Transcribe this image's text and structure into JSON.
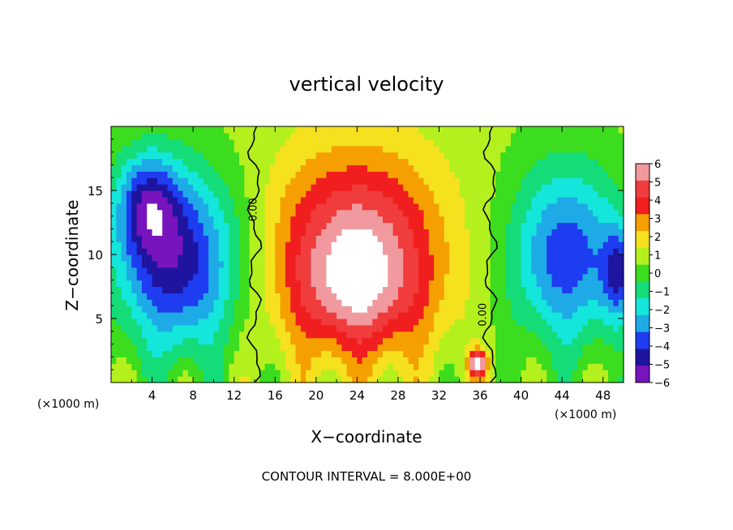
{
  "chart_data": {
    "type": "heatmap",
    "title": "vertical velocity",
    "xlabel": "X−coordinate",
    "ylabel": "Z−coordinate",
    "x_unit": "(×1000 m)",
    "x_unit_right": "(×1000 m)",
    "footer": "CONTOUR INTERVAL = 8.000E+00",
    "xlim": [
      0,
      50
    ],
    "ylim": [
      0,
      20
    ],
    "x_ticks": [
      4,
      8,
      12,
      16,
      20,
      24,
      28,
      32,
      36,
      40,
      44,
      48
    ],
    "x_tick_labels": [
      "4",
      "8",
      "12",
      "16",
      "20",
      "24",
      "28",
      "32",
      "36",
      "40",
      "44",
      "48"
    ],
    "y_ticks": [
      5,
      10,
      15
    ],
    "y_tick_labels": [
      "5",
      "10",
      "15"
    ],
    "colorbar": {
      "levels": [
        6,
        5,
        4,
        3,
        2,
        1,
        0,
        -1,
        -2,
        -3,
        -4,
        -5,
        -6
      ],
      "labels": [
        "6",
        "5",
        "4",
        "3",
        "2",
        "1",
        "0",
        "−1",
        "−2",
        "−3",
        "−4",
        "−5",
        "−6"
      ],
      "colors": [
        "#f09aa0",
        "#f03c3c",
        "#f01e1e",
        "#f5a000",
        "#f5e11e",
        "#b4f01e",
        "#3cdc1e",
        "#14dc78",
        "#14e6dc",
        "#1eaae6",
        "#1e3cf0",
        "#1e14a0",
        "#7814be"
      ]
    },
    "contour_labels": [
      {
        "text": "0.00",
        "x": 14.2,
        "y": 13.5
      },
      {
        "text": "0.00",
        "x": 36.6,
        "y": 5.3
      }
    ],
    "field_regions": {
      "background": 0.8,
      "updraft_core": [
        {
          "cx": 24.0,
          "cz": 10.5,
          "rx": 8.0,
          "rz": 7.5,
          "amp": 5.5
        },
        {
          "cx": 24.0,
          "cz": 6.5,
          "rx": 6.5,
          "rz": 4.5,
          "amp": 2.0
        },
        {
          "cx": 35.8,
          "cz": 1.5,
          "rx": 0.9,
          "rz": 1.0,
          "amp": 6.5
        }
      ],
      "downdraft_left": [
        {
          "cx": 6.5,
          "cz": 9.5,
          "rx": 6.0,
          "rz": 7.0,
          "amp": -6.0
        },
        {
          "cx": 3.5,
          "cz": 14.0,
          "rx": 3.0,
          "rz": 4.0,
          "amp": -4.0
        }
      ],
      "downdraft_right": [
        {
          "cx": 44.5,
          "cz": 10.0,
          "rx": 5.5,
          "rz": 7.0,
          "amp": -5.0
        },
        {
          "cx": 49.5,
          "cz": 8.5,
          "rx": 1.6,
          "rz": 3.5,
          "amp": -4.0
        }
      ]
    }
  }
}
